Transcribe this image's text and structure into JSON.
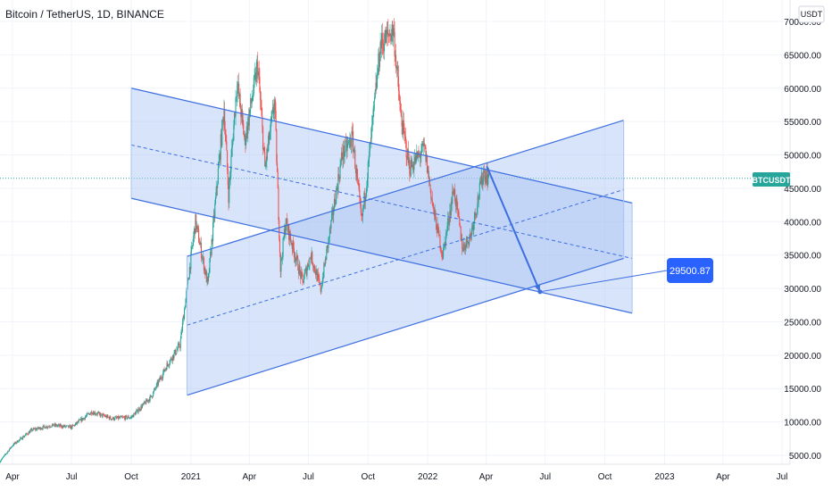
{
  "header": {
    "title": "Bitcoin / TetherUS, 1D, BINANCE",
    "currency_button": "USDT"
  },
  "price_badge": {
    "label": "BTCUSDT",
    "color": "#26a69a"
  },
  "target_badge": {
    "label": "29500.87",
    "color": "#2962ff"
  },
  "colors": {
    "up": "#26a69a",
    "down": "#ef5350",
    "channel_line": "#3d6fe0",
    "channel_fill": "#a8c3f5",
    "grid": "#f0f3fa",
    "text": "#131722"
  },
  "chart_data": {
    "type": "candlestick",
    "symbol": "BTCUSDT",
    "timeframe": "1D",
    "x_ticks": [
      "Apr",
      "Jul",
      "Oct",
      "2021",
      "Apr",
      "Jul",
      "Oct",
      "2022",
      "Apr",
      "Jul",
      "Oct",
      "2023",
      "Apr",
      "Jul"
    ],
    "y_ticks": [
      "5000.00",
      "10000.00",
      "15000.00",
      "20000.00",
      "25000.00",
      "30000.00",
      "35000.00",
      "40000.00",
      "45000.00",
      "50000.00",
      "55000.00",
      "60000.00",
      "65000.00",
      "70000.00"
    ],
    "ylim": [
      3500,
      71000
    ],
    "current_price": 46500,
    "target_price": 29500.87,
    "price_path": [
      [
        "2020-03-12",
        4000
      ],
      [
        "2020-04-01",
        6500
      ],
      [
        "2020-05-01",
        8800
      ],
      [
        "2020-06-01",
        9500
      ],
      [
        "2020-07-01",
        9200
      ],
      [
        "2020-08-01",
        11500
      ],
      [
        "2020-09-01",
        10500
      ],
      [
        "2020-10-01",
        10700
      ],
      [
        "2020-11-01",
        13800
      ],
      [
        "2020-11-25",
        18500
      ],
      [
        "2020-12-15",
        21500
      ],
      [
        "2021-01-08",
        40000
      ],
      [
        "2021-01-27",
        30500
      ],
      [
        "2021-02-21",
        57000
      ],
      [
        "2021-02-28",
        44000
      ],
      [
        "2021-03-13",
        61000
      ],
      [
        "2021-03-25",
        52000
      ],
      [
        "2021-04-14",
        63500
      ],
      [
        "2021-04-25",
        48000
      ],
      [
        "2021-05-10",
        58000
      ],
      [
        "2021-05-19",
        33000
      ],
      [
        "2021-05-27",
        40000
      ],
      [
        "2021-06-22",
        31000
      ],
      [
        "2021-07-05",
        35000
      ],
      [
        "2021-07-20",
        29800
      ],
      [
        "2021-08-22",
        50000
      ],
      [
        "2021-09-07",
        52500
      ],
      [
        "2021-09-21",
        40000
      ],
      [
        "2021-10-01",
        48000
      ],
      [
        "2021-10-20",
        66500
      ],
      [
        "2021-11-09",
        68800
      ],
      [
        "2021-11-20",
        56000
      ],
      [
        "2021-12-04",
        48000
      ],
      [
        "2021-12-27",
        51000
      ],
      [
        "2022-01-10",
        41500
      ],
      [
        "2022-01-24",
        35000
      ],
      [
        "2022-02-10",
        45000
      ],
      [
        "2022-02-24",
        36000
      ],
      [
        "2022-03-08",
        38000
      ],
      [
        "2022-03-28",
        47500
      ],
      [
        "2022-04-05",
        46500
      ]
    ],
    "drawings": {
      "descending_channel": {
        "upper": [
          [
            "2020-10-01",
            60000
          ],
          [
            "2022-11-12",
            42800
          ]
        ],
        "median": [
          [
            "2020-10-01",
            51500
          ],
          [
            "2022-11-12",
            34500
          ]
        ],
        "lower": [
          [
            "2020-10-01",
            43500
          ],
          [
            "2022-11-12",
            26300
          ]
        ]
      },
      "ascending_channel": {
        "upper": [
          [
            "2020-12-26",
            34800
          ],
          [
            "2022-10-30",
            55200
          ]
        ],
        "median": [
          [
            "2020-12-26",
            24500
          ],
          [
            "2022-10-30",
            44800
          ]
        ],
        "lower": [
          [
            "2020-12-26",
            14000
          ],
          [
            "2022-10-30",
            34500
          ]
        ]
      },
      "projection": [
        [
          "2022-04-02",
          48300
        ],
        [
          "2022-06-23",
          29500
        ]
      ]
    }
  }
}
